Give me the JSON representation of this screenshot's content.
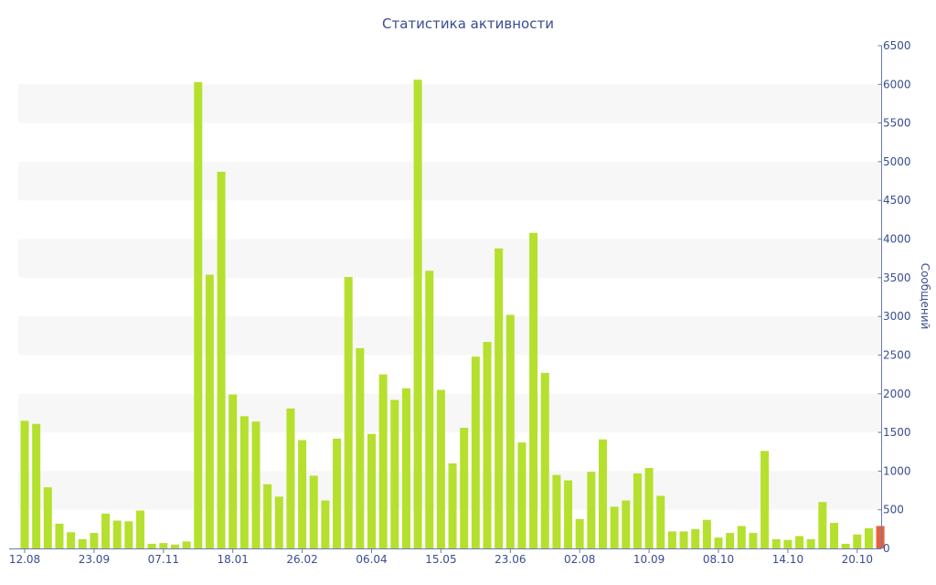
{
  "chart_data": {
    "type": "bar",
    "title": "Статистика активности",
    "ylabel": "Сообщений",
    "xlabel": "",
    "ylim": [
      0,
      6500
    ],
    "y_ticks": [
      0,
      500,
      1000,
      1500,
      2000,
      2500,
      3000,
      3500,
      4000,
      4500,
      5000,
      5500,
      6000,
      6500
    ],
    "y_axis_position": "right",
    "grid": "alternating horizontal bands",
    "x_tick_labels": [
      {
        "label": "12.08",
        "index": 0
      },
      {
        "label": "23.09",
        "index": 6
      },
      {
        "label": "07.11",
        "index": 12
      },
      {
        "label": "18.01",
        "index": 18
      },
      {
        "label": "26.02",
        "index": 24
      },
      {
        "label": "06.04",
        "index": 30
      },
      {
        "label": "15.05",
        "index": 36
      },
      {
        "label": "23.06",
        "index": 42
      },
      {
        "label": "02.08",
        "index": 48
      },
      {
        "label": "10.09",
        "index": 54
      },
      {
        "label": "08.10",
        "index": 60
      },
      {
        "label": "14.10",
        "index": 66
      },
      {
        "label": "20.10",
        "index": 72
      }
    ],
    "series": [
      {
        "values": [
          1650,
          1610,
          790,
          320,
          210,
          120,
          200,
          450,
          360,
          350,
          490,
          60,
          70,
          50,
          90,
          6030,
          3540,
          4870,
          1990,
          1710,
          1640,
          830,
          670,
          1810,
          1400,
          940,
          620,
          1420,
          3510,
          2590,
          1480,
          2250,
          1920,
          2070,
          6060,
          3590,
          2050,
          1100,
          1560,
          2480,
          2670,
          3880,
          3020,
          1370,
          4080,
          2270,
          950,
          880,
          380,
          990,
          1410,
          540,
          620,
          970,
          1040,
          680,
          220,
          220,
          250,
          370,
          140,
          200,
          290,
          200,
          1260,
          120,
          110,
          160,
          120,
          600,
          330,
          60,
          180,
          260,
          290
        ],
        "colors": {
          "default": "#b5e02e",
          "highlight": "#e6623a"
        },
        "highlight_index": 74
      }
    ]
  }
}
